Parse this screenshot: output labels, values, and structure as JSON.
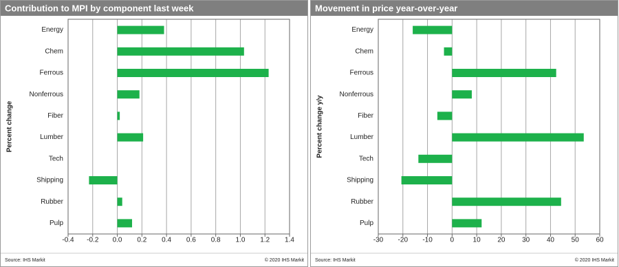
{
  "chart_data": [
    {
      "type": "bar",
      "title": "Contribution to MPI by component last week",
      "ylabel": "Percent change",
      "source": "Source: IHS Markit",
      "copyright": "© 2020 IHS Markit",
      "categories": [
        "Energy",
        "Chem",
        "Ferrous",
        "Nonferrous",
        "Fiber",
        "Lumber",
        "Tech",
        "Shipping",
        "Rubber",
        "Pulp"
      ],
      "values": [
        0.38,
        1.03,
        1.23,
        0.18,
        0.02,
        0.21,
        0,
        -0.23,
        0.04,
        0.12
      ],
      "color": "#1db14b",
      "xlim": [
        -0.4,
        1.4
      ],
      "xticks": [
        -0.4,
        -0.2,
        {
          "value": 0,
          "label": "0.0"
        },
        0.2,
        0.4,
        0.6,
        0.8,
        {
          "value": 1,
          "label": "1.0"
        },
        1.2,
        1.4
      ],
      "grid": true
    },
    {
      "type": "bar",
      "title": "Movement in price year-over-year",
      "ylabel": "Percent change y/y",
      "source": "Source: IHS Markit",
      "copyright": "© 2020 IHS Markit",
      "categories": [
        "Energy",
        "Chem",
        "Ferrous",
        "Nonferrous",
        "Fiber",
        "Lumber",
        "Tech",
        "Shipping",
        "Rubber",
        "Pulp"
      ],
      "values": [
        -16,
        -3.3,
        42.3,
        8,
        -6,
        53.5,
        -13.7,
        -20.6,
        44.3,
        12
      ],
      "color": "#1db14b",
      "xlim": [
        -30,
        60
      ],
      "xticks": [
        -30,
        -20,
        -10,
        0,
        10,
        20,
        30,
        40,
        50,
        60
      ],
      "grid": true
    }
  ]
}
